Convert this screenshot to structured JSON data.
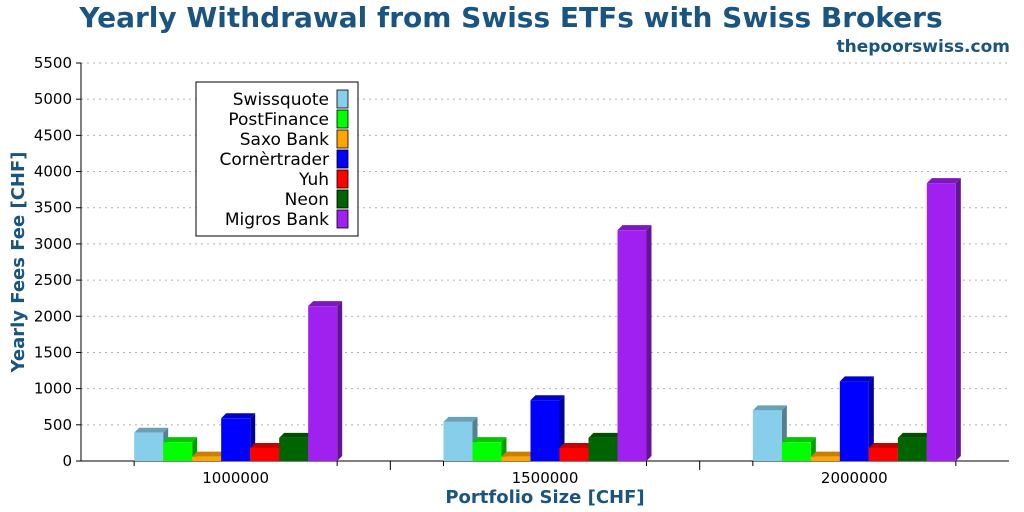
{
  "chart_data": {
    "type": "bar",
    "title": "Yearly Withdrawal from Swiss ETFs with Swiss Brokers",
    "source": "thepoorswiss.com",
    "xlabel": "Portfolio Size [CHF]",
    "ylabel": "Yearly Fees Fee [CHF]",
    "ylim": [
      0,
      5500
    ],
    "yticks": [
      0,
      500,
      1000,
      1500,
      2000,
      2500,
      3000,
      3500,
      4000,
      4500,
      5000,
      5500
    ],
    "grid": true,
    "legend_position": "top-left",
    "categories": [
      "1000000",
      "1500000",
      "2000000"
    ],
    "series": [
      {
        "name": "Swissquote",
        "color": "#87ceeb",
        "values": [
          390,
          540,
          700
        ]
      },
      {
        "name": "PostFinance",
        "color": "#00ff00",
        "values": [
          260,
          260,
          260
        ]
      },
      {
        "name": "Saxo Bank",
        "color": "#ffa500",
        "values": [
          60,
          60,
          60
        ]
      },
      {
        "name": "Cornèrtrader",
        "color": "#0000ff",
        "values": [
          590,
          840,
          1100
        ]
      },
      {
        "name": "Yuh",
        "color": "#ff0000",
        "values": [
          180,
          180,
          180
        ]
      },
      {
        "name": "Neon",
        "color": "#006400",
        "values": [
          320,
          320,
          320
        ]
      },
      {
        "name": "Migros Bank",
        "color": "#a020f0",
        "values": [
          2140,
          3190,
          3840
        ]
      }
    ]
  }
}
